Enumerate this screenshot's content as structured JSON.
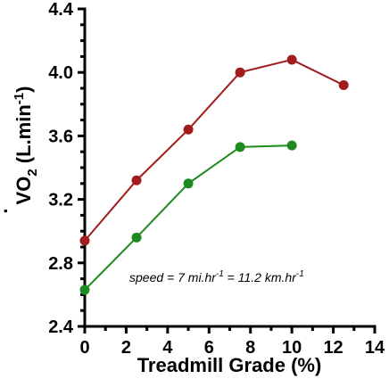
{
  "chart_data": {
    "type": "line",
    "xlabel": "Treadmill Grade (%)",
    "ylabel": {
      "main": "VO",
      "sub": "2",
      "unit": " (L.min",
      "sup": "-1",
      "close": ")"
    },
    "xlim": [
      0,
      14
    ],
    "ylim": [
      2.4,
      4.4
    ],
    "x_major_ticks": [
      "0",
      "2",
      "4",
      "6",
      "8",
      "10",
      "12",
      "14"
    ],
    "y_major_ticks": [
      "2.4",
      "2.8",
      "3.2",
      "3.6",
      "4.0",
      "4.4"
    ],
    "grid": false,
    "annotation": {
      "a": "speed = 7 mi.hr",
      "a_sup": "-1",
      "b": " = 11.2 km.hr",
      "b_sup": "-1"
    },
    "series": [
      {
        "color": "#a31c1c",
        "x": [
          0,
          2.5,
          5,
          7.5,
          10,
          12.5
        ],
        "y": [
          2.94,
          3.32,
          3.64,
          4.0,
          4.08,
          3.92
        ]
      },
      {
        "color": "#1f8a1f",
        "x": [
          0,
          2.5,
          5,
          7.5,
          10
        ],
        "y": [
          2.63,
          2.96,
          3.3,
          3.53,
          3.54
        ]
      }
    ]
  }
}
